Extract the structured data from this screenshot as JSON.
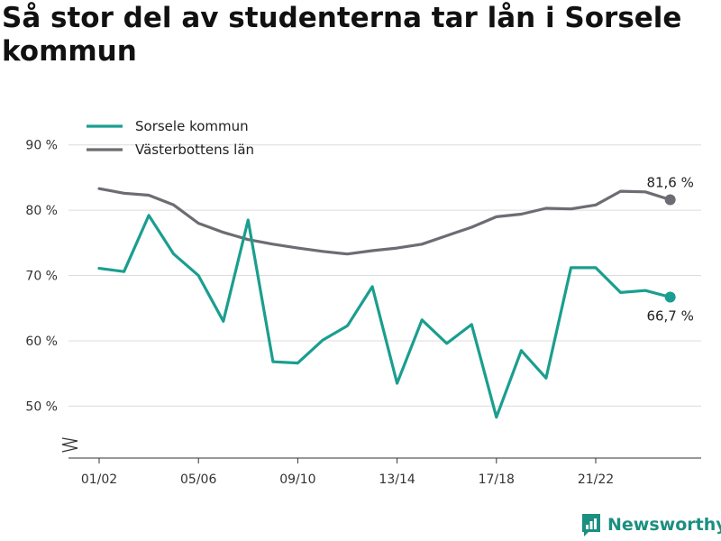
{
  "chart_data": {
    "type": "line",
    "title": "Så stor del av studenterna tar lån i Sorsele kommun",
    "xlabel": "",
    "ylabel": "",
    "x": [
      "01/02",
      "02/03",
      "03/04",
      "04/05",
      "05/06",
      "06/07",
      "07/08",
      "08/09",
      "09/10",
      "10/11",
      "11/12",
      "12/13",
      "13/14",
      "14/15",
      "15/16",
      "16/17",
      "17/18",
      "18/19",
      "19/20",
      "20/21",
      "21/22",
      "22/23",
      "23/24",
      "24/25"
    ],
    "x_ticks": [
      "01/02",
      "05/06",
      "09/10",
      "13/14",
      "17/18",
      "21/22"
    ],
    "y_ticks": [
      50,
      60,
      70,
      80,
      90
    ],
    "y_tick_labels": [
      "50 %",
      "60 %",
      "70 %",
      "80 %",
      "90 %"
    ],
    "ylim": [
      41,
      93
    ],
    "grid": true,
    "legend_position": "top-left",
    "series": [
      {
        "name": "Sorsele kommun",
        "color": "#1a9e8f",
        "values": [
          71.1,
          70.6,
          79.2,
          73.3,
          70.0,
          63.0,
          78.5,
          56.8,
          56.6,
          60.1,
          62.3,
          68.3,
          53.5,
          63.2,
          59.6,
          62.5,
          48.3,
          58.5,
          54.3,
          71.2,
          71.2,
          67.4,
          67.7,
          66.7
        ],
        "end_label": "66,7 %"
      },
      {
        "name": "Västerbottens län",
        "color": "#6e6c72",
        "values": [
          83.3,
          82.6,
          82.3,
          80.8,
          78.0,
          76.6,
          75.5,
          74.8,
          74.2,
          73.7,
          73.3,
          73.8,
          74.2,
          74.8,
          76.1,
          77.4,
          79.0,
          79.4,
          80.3,
          80.2,
          80.8,
          82.9,
          82.8,
          81.6
        ],
        "end_label": "81,6 %"
      }
    ]
  },
  "brand": {
    "name": "Newsworthy",
    "color": "#1b8f80",
    "icon": "newsworthy-logo-icon"
  }
}
